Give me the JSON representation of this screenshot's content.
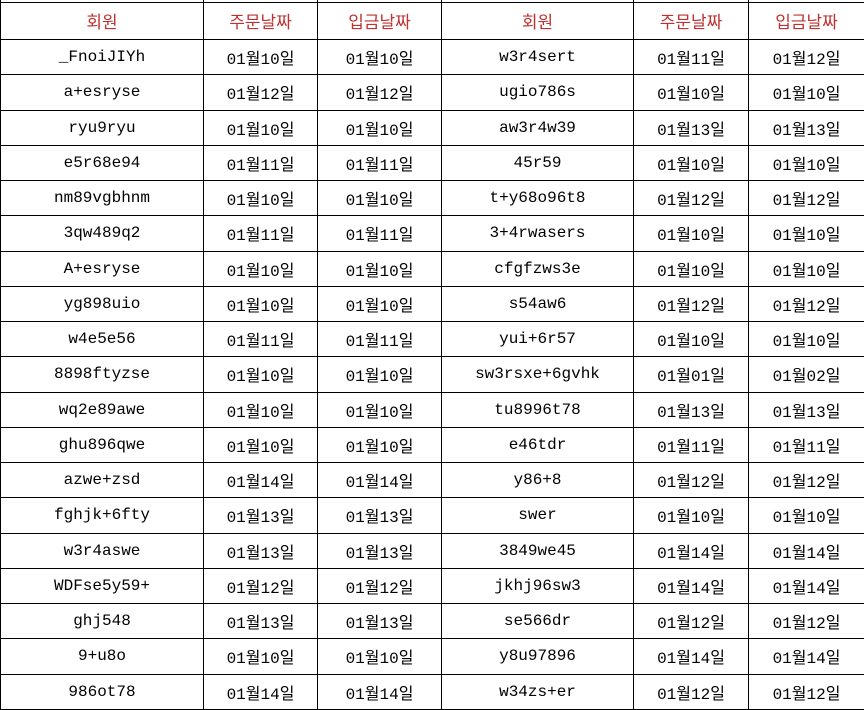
{
  "table": {
    "header_text_color": "#BE3232",
    "body_text_color": "#000000",
    "border_color": "#000000",
    "columns": [
      "회원",
      "주문날짜",
      "입금날짜",
      "회원",
      "주문날짜",
      "입금날짜"
    ],
    "rows": [
      [
        "_FnoiJIYh",
        "01월10일",
        "01월10일",
        "w3r4sert",
        "01월11일",
        "01월12일"
      ],
      [
        "a+esryse",
        "01월12일",
        "01월12일",
        "ugio786s",
        "01월10일",
        "01월10일"
      ],
      [
        "ryu9ryu",
        "01월10일",
        "01월10일",
        "aw3r4w39",
        "01월13일",
        "01월13일"
      ],
      [
        "e5r68e94",
        "01월11일",
        "01월11일",
        "45r59",
        "01월10일",
        "01월10일"
      ],
      [
        "nm89vgbhnm",
        "01월10일",
        "01월10일",
        "t+y68o96t8",
        "01월12일",
        "01월12일"
      ],
      [
        "3qw489q2",
        "01월11일",
        "01월11일",
        "3+4rwasers",
        "01월10일",
        "01월10일"
      ],
      [
        "A+esryse",
        "01월10일",
        "01월10일",
        "cfgfzws3e",
        "01월10일",
        "01월10일"
      ],
      [
        "yg898uio",
        "01월10일",
        "01월10일",
        "s54aw6",
        "01월12일",
        "01월12일"
      ],
      [
        "w4e5e56",
        "01월11일",
        "01월11일",
        "yui+6r57",
        "01월10일",
        "01월10일"
      ],
      [
        "8898ftyzse",
        "01월10일",
        "01월10일",
        "sw3rsxe+6gvhk",
        "01월01일",
        "01월02일"
      ],
      [
        "wq2e89awe",
        "01월10일",
        "01월10일",
        "tu8996t78",
        "01월13일",
        "01월13일"
      ],
      [
        "ghu896qwe",
        "01월10일",
        "01월10일",
        "e46tdr",
        "01월11일",
        "01월11일"
      ],
      [
        "azwe+zsd",
        "01월14일",
        "01월14일",
        "y86+8",
        "01월12일",
        "01월12일"
      ],
      [
        "fghjk+6fty",
        "01월13일",
        "01월13일",
        "swer",
        "01월10일",
        "01월10일"
      ],
      [
        "w3r4aswe",
        "01월13일",
        "01월13일",
        "3849we45",
        "01월14일",
        "01월14일"
      ],
      [
        "WDFse5y59+",
        "01월12일",
        "01월12일",
        "jkhj96sw3",
        "01월14일",
        "01월14일"
      ],
      [
        "ghj548",
        "01월13일",
        "01월13일",
        "se566dr",
        "01월12일",
        "01월12일"
      ],
      [
        "9+u8o",
        "01월10일",
        "01월10일",
        "y8u97896",
        "01월14일",
        "01월14일"
      ],
      [
        "986ot78",
        "01월14일",
        "01월14일",
        "w34zs+er",
        "01월12일",
        "01월12일"
      ]
    ]
  }
}
